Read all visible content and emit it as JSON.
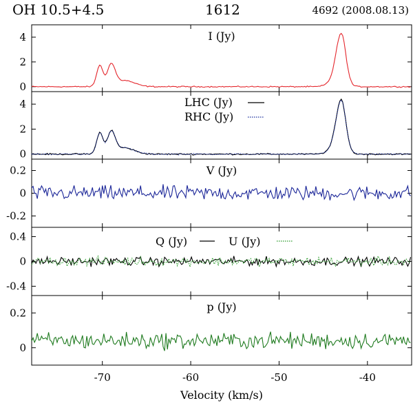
{
  "header": {
    "object_name": "OH 10.5+4.5",
    "frequency": "1612",
    "observation": "4692 (2008.08.13)"
  },
  "chart_data": {
    "type": "line",
    "title": "OH 10.5+4.5  1612",
    "xlabel": "Velocity (km/s)",
    "xlim": [
      -78,
      -35
    ],
    "xticks": [
      -70,
      -60,
      -50,
      -40
    ],
    "panels": [
      {
        "id": "I",
        "label": "I (Jy)",
        "ylim": [
          -0.4,
          5.0
        ],
        "yticks": [
          0,
          2,
          4
        ],
        "series": [
          {
            "name": "I (Jy)",
            "color": "#e4252b",
            "style": "solid",
            "profile": {
              "base": 0.0,
              "noise": 0.04,
              "peaks": [
                [
                  -70.3,
                  1.7,
                  0.35
                ],
                [
                  -69.0,
                  1.7,
                  0.45
                ],
                [
                  -67.5,
                  0.5,
                  1.1
                ],
                [
                  -43.8,
                  0.45,
                  0.7
                ],
                [
                  -43.0,
                  3.9,
                  0.55
                ],
                [
                  -42.7,
                  0.3,
                  0.3
                ]
              ]
            }
          }
        ]
      },
      {
        "id": "LR",
        "label": "LHC (Jy)",
        "label2": "RHC (Jy)",
        "ylim": [
          -0.4,
          5.0
        ],
        "yticks": [
          0,
          2,
          4
        ],
        "series": [
          {
            "name": "LHC (Jy)",
            "color": "#000000",
            "style": "solid",
            "profile": {
              "base": 0.0,
              "noise": 0.05,
              "peaks": [
                [
                  -70.3,
                  1.7,
                  0.35
                ],
                [
                  -69.0,
                  1.7,
                  0.45
                ],
                [
                  -67.5,
                  0.5,
                  1.1
                ],
                [
                  -43.8,
                  0.45,
                  0.7
                ],
                [
                  -43.0,
                  3.95,
                  0.55
                ],
                [
                  -42.7,
                  0.3,
                  0.3
                ]
              ]
            }
          },
          {
            "name": "RHC (Jy)",
            "color": "#1a2f9e",
            "style": "dotted",
            "profile": {
              "base": 0.0,
              "noise": 0.05,
              "peaks": [
                [
                  -70.3,
                  1.7,
                  0.35
                ],
                [
                  -69.0,
                  1.7,
                  0.45
                ],
                [
                  -67.5,
                  0.5,
                  1.1
                ],
                [
                  -43.8,
                  0.45,
                  0.7
                ],
                [
                  -43.0,
                  3.9,
                  0.55
                ],
                [
                  -42.7,
                  0.3,
                  0.3
                ]
              ]
            }
          }
        ]
      },
      {
        "id": "V",
        "label": "V (Jy)",
        "ylim": [
          -0.3,
          0.3
        ],
        "yticks": [
          -0.2,
          0,
          0.2
        ],
        "series": [
          {
            "name": "V (Jy)",
            "color": "#1a2598",
            "style": "solid",
            "profile": {
              "base": 0.0,
              "noise": 0.055,
              "peaks": []
            }
          }
        ]
      },
      {
        "id": "QU",
        "label": "Q (Jy)",
        "label2": "U (Jy)",
        "ylim": [
          -0.55,
          0.55
        ],
        "yticks": [
          -0.4,
          0,
          0.4
        ],
        "series": [
          {
            "name": "Q (Jy)",
            "color": "#000000",
            "style": "solid",
            "profile": {
              "base": 0.0,
              "noise": 0.06,
              "peaks": []
            }
          },
          {
            "name": "U (Jy)",
            "color": "#2a9a2a",
            "style": "dotted",
            "profile": {
              "base": 0.0,
              "noise": 0.06,
              "peaks": []
            }
          }
        ]
      },
      {
        "id": "p",
        "label": "p (Jy)",
        "ylim": [
          -0.1,
          0.3
        ],
        "yticks": [
          0,
          0.2
        ],
        "series": [
          {
            "name": "p (Jy)",
            "color": "#1e7a1e",
            "style": "solid",
            "profile": {
              "base": 0.04,
              "noise": 0.04,
              "peaks": []
            }
          }
        ]
      }
    ],
    "x_tick_labels": [
      "-70",
      "-60",
      "-50",
      "-40"
    ]
  }
}
